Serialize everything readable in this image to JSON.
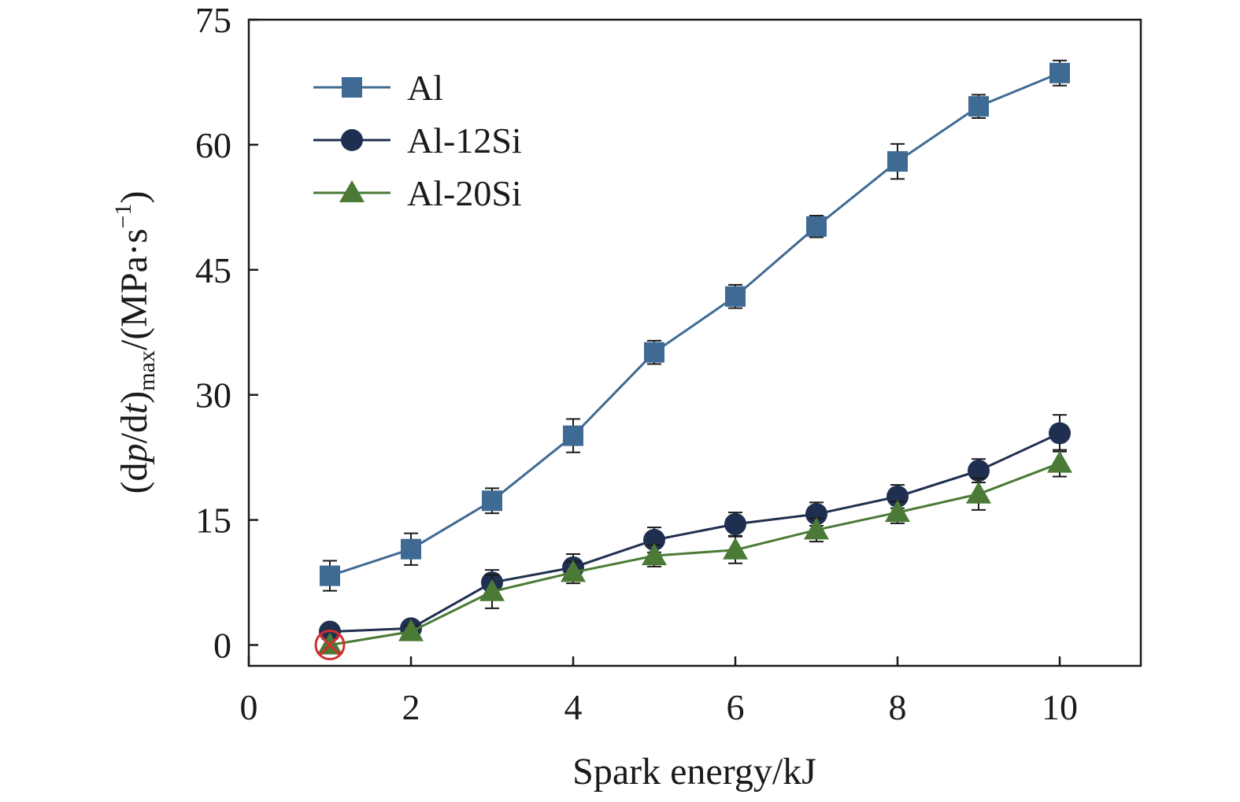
{
  "chart_data": {
    "type": "line",
    "xlabel": "Spark energy/kJ",
    "ylabel": {
      "prefix": "(d",
      "p": "p",
      "slash": "/d",
      "t": "t",
      "close": ")",
      "sub": "max",
      "units": "/(MPa·s",
      "sup": "−1",
      "end": ")"
    },
    "xlim": [
      0,
      11
    ],
    "ylim": [
      -2.5,
      75
    ],
    "xticks": [
      0,
      2,
      4,
      6,
      8,
      10
    ],
    "yticks": [
      0,
      15,
      30,
      45,
      60,
      75
    ],
    "grid": false,
    "legend_position": "top-left",
    "series": [
      {
        "name": "Al",
        "marker": "square",
        "color": "#3f6a93",
        "x": [
          1,
          2,
          3,
          4,
          5,
          6,
          7,
          8,
          9,
          10
        ],
        "y": [
          8.3,
          11.5,
          17.3,
          25.1,
          35.1,
          41.8,
          50.2,
          58.0,
          64.6,
          68.6
        ],
        "err": [
          1.8,
          1.9,
          1.5,
          2.0,
          1.4,
          1.4,
          1.3,
          2.1,
          1.4,
          1.5
        ]
      },
      {
        "name": "Al-12Si",
        "marker": "circle",
        "color": "#1f2f4f",
        "x": [
          1,
          2,
          3,
          4,
          5,
          6,
          7,
          8,
          9,
          10
        ],
        "y": [
          1.6,
          2.0,
          7.5,
          9.3,
          12.6,
          14.5,
          15.7,
          17.8,
          20.9,
          25.4
        ],
        "err": [
          0.5,
          0.6,
          1.5,
          1.6,
          1.5,
          1.4,
          1.4,
          1.4,
          1.4,
          2.2
        ]
      },
      {
        "name": "Al-20Si",
        "marker": "triangle",
        "color": "#4a7a35",
        "x": [
          1,
          2,
          3,
          4,
          5,
          6,
          7,
          8,
          9,
          10
        ],
        "y": [
          0.0,
          1.6,
          6.4,
          8.7,
          10.7,
          11.4,
          13.8,
          15.9,
          18.1,
          21.8
        ],
        "err": [
          0.0,
          0.7,
          2.0,
          1.3,
          1.3,
          1.6,
          1.4,
          1.3,
          1.9,
          1.6
        ]
      }
    ],
    "annotation_marker": {
      "x": 1,
      "y": 0,
      "symbol": "circle-cross",
      "color": "#d03030"
    }
  }
}
